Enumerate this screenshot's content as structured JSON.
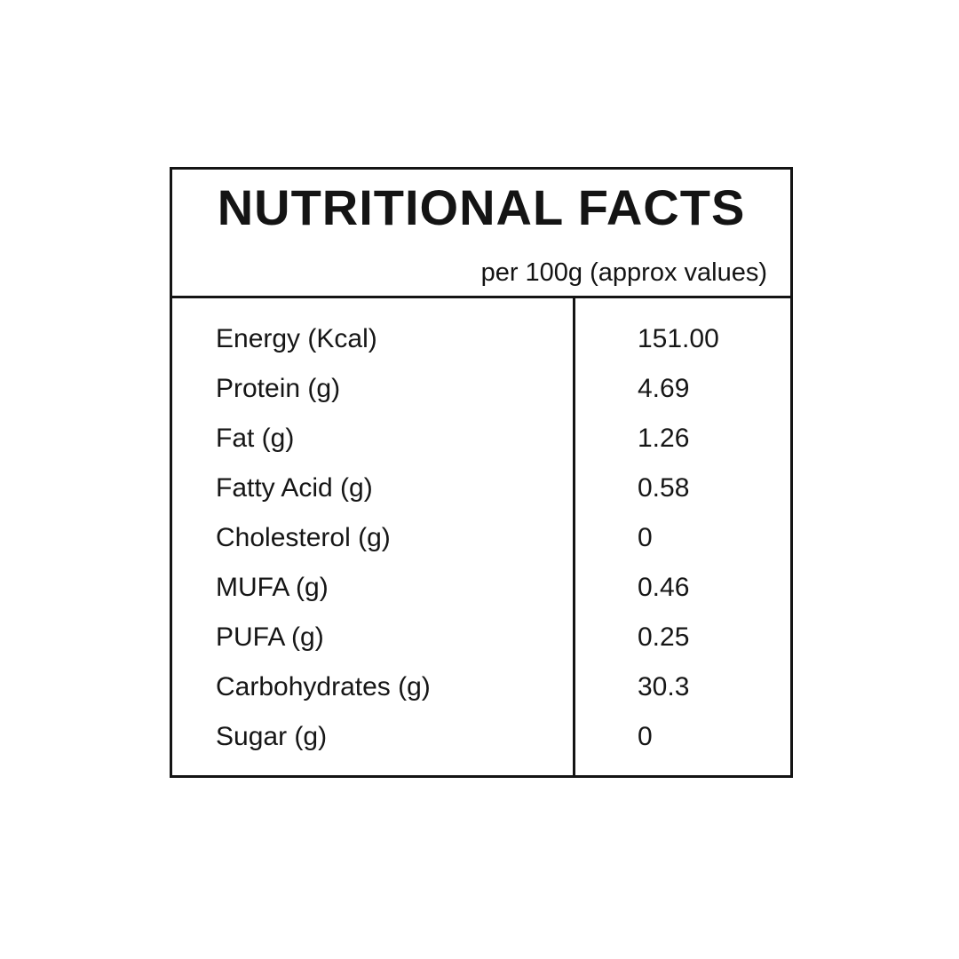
{
  "panel": {
    "title": "NUTRITIONAL FACTS",
    "subtitle": "per 100g (approx values)"
  },
  "table": {
    "rows": [
      {
        "label": "Energy (Kcal)",
        "value": "151.00"
      },
      {
        "label": "Protein (g)",
        "value": "4.69"
      },
      {
        "label": "Fat (g)",
        "value": "1.26"
      },
      {
        "label": "Fatty Acid (g)",
        "value": "0.58"
      },
      {
        "label": "Cholesterol (g)",
        "value": "0"
      },
      {
        "label": "MUFA (g)",
        "value": "0.46"
      },
      {
        "label": "PUFA (g)",
        "value": "0.25"
      },
      {
        "label": "Carbohydrates (g)",
        "value": "30.3"
      },
      {
        "label": "Sugar (g)",
        "value": "0"
      }
    ]
  },
  "colors": {
    "background": "#ffffff",
    "text": "#161616",
    "border": "#141414"
  }
}
